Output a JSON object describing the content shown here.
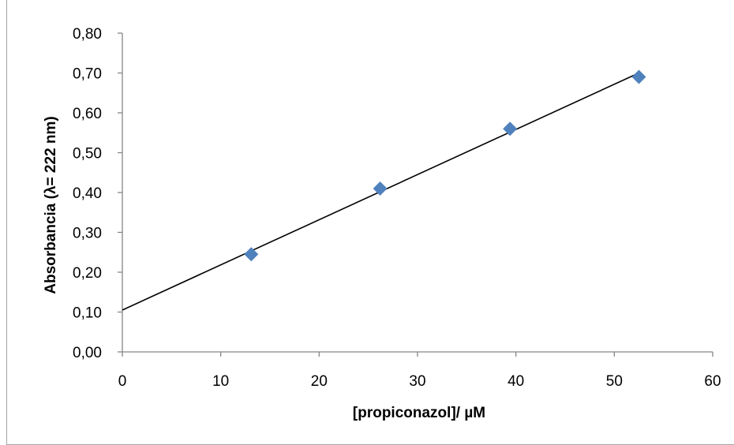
{
  "chart_data": {
    "type": "scatter",
    "title": "",
    "xlabel": "[propiconazol]/ µM",
    "ylabel": "Absorbancia (λ= 222 nm)",
    "xlim": [
      0,
      60
    ],
    "ylim": [
      0,
      0.8
    ],
    "x_ticks": [
      "0",
      "10",
      "20",
      "30",
      "40",
      "50",
      "60"
    ],
    "y_ticks": [
      "0,00",
      "0,10",
      "0,20",
      "0,30",
      "0,40",
      "0,50",
      "0,60",
      "0,70",
      "0,80"
    ],
    "series": [
      {
        "x": [
          13.1,
          26.2,
          39.4,
          52.5
        ],
        "y": [
          0.245,
          0.41,
          0.56,
          0.69
        ],
        "marker": "diamond",
        "color": "#4f81bd"
      }
    ],
    "trendline": {
      "type": "linear",
      "x": [
        0,
        52.5
      ],
      "y": [
        0.105,
        0.7
      ],
      "color": "#000000"
    },
    "grid": false,
    "legend": "none"
  }
}
